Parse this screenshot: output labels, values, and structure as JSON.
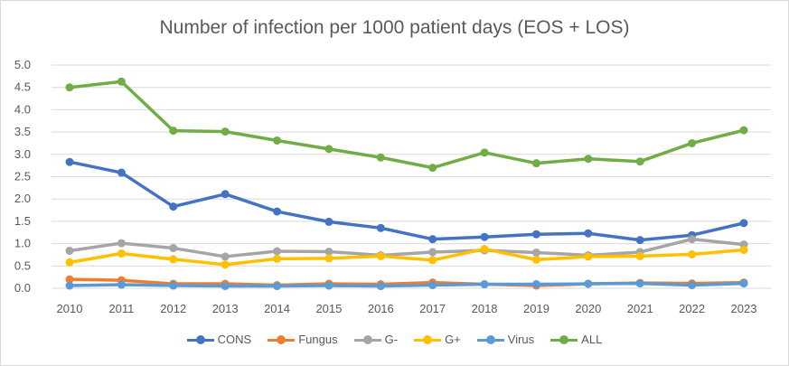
{
  "chart_data": {
    "type": "line",
    "title": "Number of infection per 1000 patient days (EOS + LOS)",
    "xlabel": "",
    "ylabel": "",
    "ylim": [
      0,
      5
    ],
    "y_ticks": [
      "0.0",
      "0.5",
      "1.0",
      "1.5",
      "2.0",
      "2.5",
      "3.0",
      "3.5",
      "4.0",
      "4.5",
      "5.0"
    ],
    "grid": true,
    "legend_position": "bottom",
    "categories": [
      "2010",
      "2011",
      "2012",
      "2013",
      "2014",
      "2015",
      "2016",
      "2017",
      "2018",
      "2019",
      "2020",
      "2021",
      "2022",
      "2023"
    ],
    "series": [
      {
        "name": "CONS",
        "color": "#4472c4",
        "values": [
          2.83,
          2.59,
          1.83,
          2.11,
          1.72,
          1.49,
          1.35,
          1.1,
          1.15,
          1.21,
          1.23,
          1.08,
          1.19,
          1.46
        ]
      },
      {
        "name": "Fungus",
        "color": "#ed7d31",
        "values": [
          0.2,
          0.18,
          0.1,
          0.1,
          0.07,
          0.1,
          0.09,
          0.13,
          0.09,
          0.06,
          0.1,
          0.12,
          0.11,
          0.13
        ]
      },
      {
        "name": "G-",
        "color": "#a5a5a5",
        "values": [
          0.84,
          1.01,
          0.9,
          0.71,
          0.83,
          0.82,
          0.74,
          0.81,
          0.85,
          0.8,
          0.74,
          0.81,
          1.1,
          0.98
        ]
      },
      {
        "name": "G+",
        "color": "#ffc000",
        "values": [
          0.58,
          0.78,
          0.65,
          0.53,
          0.66,
          0.67,
          0.72,
          0.63,
          0.88,
          0.64,
          0.71,
          0.72,
          0.76,
          0.86
        ]
      },
      {
        "name": "Virus",
        "color": "#5b9bd5",
        "values": [
          0.06,
          0.08,
          0.06,
          0.05,
          0.05,
          0.06,
          0.05,
          0.07,
          0.09,
          0.09,
          0.1,
          0.11,
          0.07,
          0.11
        ]
      },
      {
        "name": "ALL",
        "color": "#70ad47",
        "values": [
          4.5,
          4.63,
          3.53,
          3.51,
          3.31,
          3.12,
          2.93,
          2.7,
          3.04,
          2.8,
          2.9,
          2.84,
          3.25,
          3.54
        ]
      }
    ]
  }
}
